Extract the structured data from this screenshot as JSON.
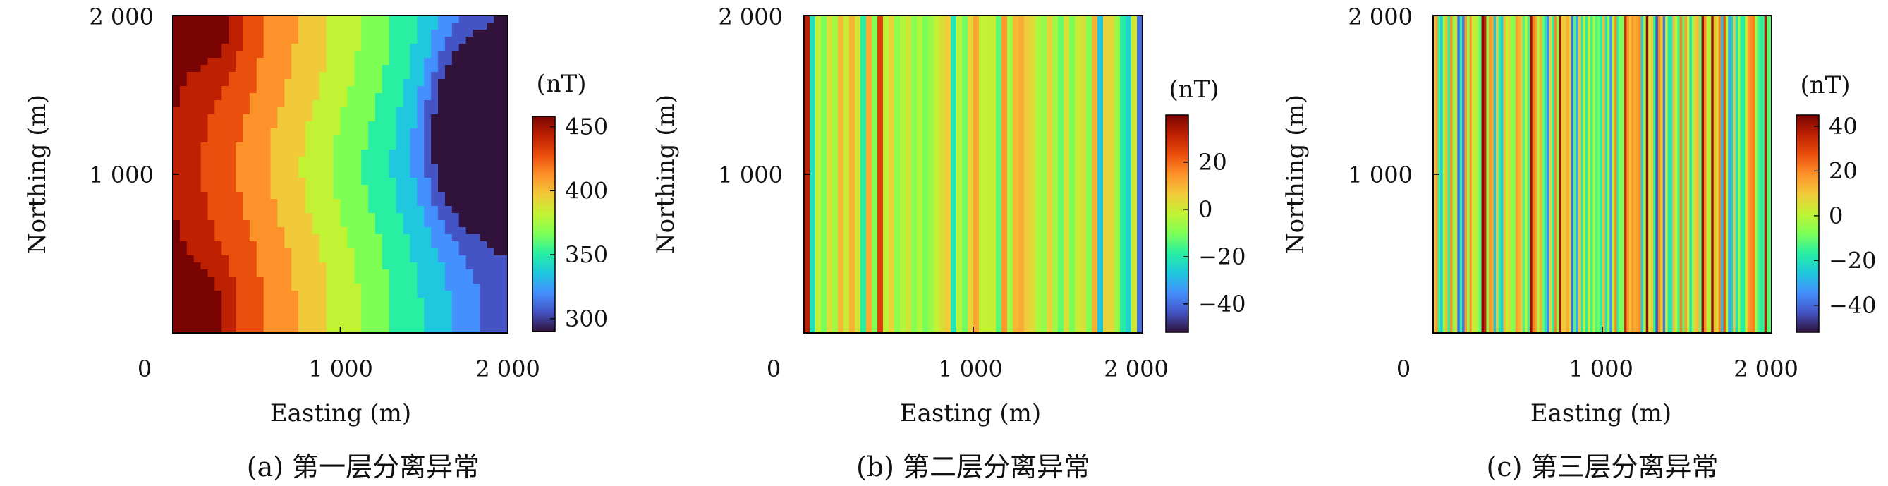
{
  "chart_data": [
    {
      "type": "heatmap",
      "caption": "(a) 第一层分离异常",
      "xlabel": "Easting (m)",
      "ylabel": "Northing (m)",
      "x_ticks": [
        "0",
        "1 000",
        "2 000"
      ],
      "y_ticks": [
        "1 000",
        "2 000"
      ],
      "xlim": [
        0,
        2000
      ],
      "ylim": [
        0,
        2000
      ],
      "colorbar": {
        "unit": "(nT)",
        "min": 290,
        "max": 458,
        "ticks": [
          300,
          350,
          400,
          450
        ]
      },
      "colormap": [
        "#30123b",
        "#4454c4",
        "#4490fe",
        "#1fc8de",
        "#29efa2",
        "#7dff56",
        "#c1f334",
        "#f1ca3a",
        "#fe922a",
        "#ea4f0d",
        "#be2102",
        "#7a0403"
      ],
      "field": {
        "model": "planar gradient from west (high) to east (low) with an east-centred low",
        "west_value": 458,
        "east_value": 300,
        "low_center": [
          1770,
          1300
        ],
        "low_value": 290,
        "high_centers": [
          [
            250,
            1950
          ],
          [
            180,
            100
          ]
        ],
        "high_value": 458
      }
    },
    {
      "type": "heatmap",
      "caption": "(b) 第二层分离异常",
      "xlabel": "Easting (m)",
      "ylabel": "Northing (m)",
      "x_ticks": [
        "0",
        "1 000",
        "2 000"
      ],
      "y_ticks": [
        "1 000",
        "2 000"
      ],
      "xlim": [
        0,
        2000
      ],
      "ylim": [
        0,
        2000
      ],
      "colorbar": {
        "unit": "(nT)",
        "min": -52,
        "max": 40,
        "ticks": [
          20,
          0,
          -20,
          -40
        ]
      },
      "colormap": [
        "#30123b",
        "#4454c4",
        "#4490fe",
        "#1fc8de",
        "#29efa2",
        "#7dff56",
        "#c1f334",
        "#f1ca3a",
        "#fe922a",
        "#ea4f0d",
        "#be2102",
        "#7a0403"
      ],
      "field": {
        "model": "vertical stripes varying with easting only",
        "stripe_count": 60,
        "amplitude": 18,
        "seed": 7
      }
    },
    {
      "type": "heatmap",
      "caption": "(c) 第三层分离异常",
      "xlabel": "Easting (m)",
      "ylabel": "Northing (m)",
      "x_ticks": [
        "0",
        "1 000",
        "2 000"
      ],
      "y_ticks": [
        "1 000",
        "2 000"
      ],
      "xlim": [
        0,
        2000
      ],
      "ylim": [
        0,
        2000
      ],
      "colorbar": {
        "unit": "(nT)",
        "min": -52,
        "max": 45,
        "ticks": [
          40,
          20,
          0,
          -20,
          -40
        ]
      },
      "colormap": [
        "#30123b",
        "#4454c4",
        "#4490fe",
        "#1fc8de",
        "#29efa2",
        "#7dff56",
        "#c1f334",
        "#f1ca3a",
        "#fe922a",
        "#ea4f0d",
        "#be2102",
        "#7a0403"
      ],
      "field": {
        "model": "fine vertical stripes varying with easting only",
        "stripe_count": 140,
        "amplitude": 30,
        "seed": 13
      }
    }
  ]
}
